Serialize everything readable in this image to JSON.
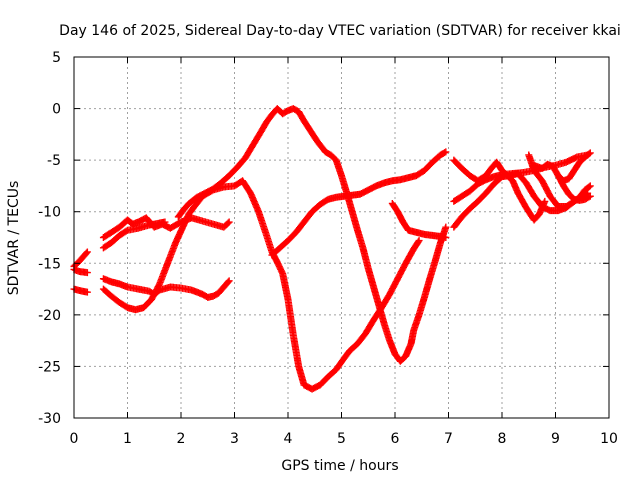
{
  "chart_data": {
    "type": "scatter",
    "title": "Day 146 of 2025, Sidereal Day-to-day VTEC variation (SDTVAR) for receiver kkai",
    "xlabel": "GPS time / hours",
    "ylabel": "SDTVAR / TECUs",
    "xlim": [
      0,
      10
    ],
    "ylim": [
      -30,
      5
    ],
    "xticks": [
      0,
      1,
      2,
      3,
      4,
      5,
      6,
      7,
      8,
      9,
      10
    ],
    "yticks": [
      -30,
      -25,
      -20,
      -15,
      -10,
      -5,
      0,
      5
    ],
    "grid": true,
    "marker": "+",
    "color": "#ff0000",
    "series": [
      {
        "x": [
          0.0,
          0.1,
          0.2,
          0.25
        ],
        "y": [
          -15.3,
          -14.8,
          -14.2,
          -13.9
        ]
      },
      {
        "x": [
          0.0,
          0.1,
          0.25
        ],
        "y": [
          -15.6,
          -15.8,
          -15.9
        ]
      },
      {
        "x": [
          0.0,
          0.15,
          0.25
        ],
        "y": [
          -17.5,
          -17.7,
          -17.8
        ]
      },
      {
        "x": [
          0.55,
          0.7,
          0.85,
          1.0,
          1.1,
          1.2,
          1.35,
          1.5,
          1.65,
          1.8,
          2.0,
          2.2,
          2.4,
          2.6,
          2.8,
          2.9
        ],
        "y": [
          -12.5,
          -12.0,
          -11.5,
          -10.8,
          -11.2,
          -11.0,
          -10.6,
          -11.5,
          -11.2,
          -11.6,
          -11.0,
          -10.6,
          -10.9,
          -11.2,
          -11.5,
          -11.0
        ]
      },
      {
        "x": [
          0.55,
          0.7,
          0.85,
          1.0,
          1.2,
          1.4,
          1.5,
          1.6,
          1.7
        ],
        "y": [
          -13.5,
          -13.0,
          -12.3,
          -11.8,
          -11.6,
          -11.3,
          -11.2,
          -11.1,
          -11.0
        ]
      },
      {
        "x": [
          0.55,
          0.7,
          0.85,
          1.0,
          1.2,
          1.4,
          1.5,
          1.6,
          1.8,
          2.0,
          2.2,
          2.4,
          2.5,
          2.6,
          2.7,
          2.8,
          2.9
        ],
        "y": [
          -16.5,
          -16.8,
          -17.0,
          -17.3,
          -17.5,
          -17.7,
          -18.0,
          -17.6,
          -17.3,
          -17.4,
          -17.6,
          -18.0,
          -18.3,
          -18.2,
          -17.9,
          -17.3,
          -16.7
        ]
      },
      {
        "x": [
          0.55,
          0.7,
          0.85,
          1.0,
          1.15,
          1.3,
          1.45,
          1.6,
          1.75,
          1.9,
          2.05,
          2.15,
          2.25,
          2.4,
          2.6,
          2.8,
          3.0,
          3.15,
          3.3,
          3.45,
          3.6,
          3.7,
          3.8,
          3.9,
          4.0,
          4.1,
          4.2,
          4.3,
          4.45,
          4.6,
          4.75,
          4.9,
          5.05,
          5.15,
          5.3,
          5.45,
          5.6,
          5.75,
          5.9,
          6.05,
          6.2,
          6.35,
          6.45
        ],
        "y": [
          -17.5,
          -18.2,
          -18.8,
          -19.3,
          -19.5,
          -19.3,
          -18.5,
          -17.0,
          -15.0,
          -13.0,
          -11.3,
          -10.2,
          -9.5,
          -8.5,
          -7.9,
          -7.6,
          -7.5,
          -7.0,
          -8.2,
          -10.0,
          -12.3,
          -13.9,
          -14.9,
          -16.0,
          -18.5,
          -22.0,
          -25.0,
          -26.8,
          -27.2,
          -26.8,
          -26.0,
          -25.3,
          -24.2,
          -23.5,
          -22.8,
          -21.8,
          -20.5,
          -19.3,
          -18.0,
          -16.5,
          -15.0,
          -13.6,
          -12.8
        ]
      },
      {
        "x": [
          1.95,
          2.05,
          2.15,
          2.3,
          2.45,
          2.6,
          2.75,
          2.9,
          3.05,
          3.2,
          3.35,
          3.5,
          3.6,
          3.7,
          3.8,
          3.9,
          4.0,
          4.1,
          4.2,
          4.3,
          4.4,
          4.55,
          4.7,
          4.8,
          4.9,
          5.0,
          5.1,
          5.2,
          5.3,
          5.4,
          5.5,
          5.6,
          5.7,
          5.8,
          5.9,
          6.0,
          6.1,
          6.2,
          6.3,
          6.35,
          6.45,
          6.55,
          6.65,
          6.75,
          6.85,
          6.95
        ],
        "y": [
          -10.5,
          -9.8,
          -9.2,
          -8.6,
          -8.2,
          -7.8,
          -7.2,
          -6.5,
          -5.7,
          -4.8,
          -3.5,
          -2.2,
          -1.3,
          -0.6,
          0.0,
          -0.5,
          -0.2,
          0.0,
          -0.3,
          -1.2,
          -2.0,
          -3.2,
          -4.2,
          -4.5,
          -5.0,
          -6.5,
          -8.2,
          -10.0,
          -11.8,
          -13.5,
          -15.5,
          -17.3,
          -19.1,
          -20.9,
          -22.5,
          -23.8,
          -24.5,
          -24.0,
          -22.8,
          -21.5,
          -20.0,
          -18.3,
          -16.5,
          -14.8,
          -13.0,
          -11.5
        ]
      },
      {
        "x": [
          3.7,
          3.85,
          4.0,
          4.15,
          4.3,
          4.45,
          4.6,
          4.75,
          4.9,
          5.05,
          5.2,
          5.35,
          5.5,
          5.65,
          5.8,
          5.95,
          6.1,
          6.25,
          6.4,
          6.55,
          6.7,
          6.85,
          6.95
        ],
        "y": [
          -14.2,
          -13.5,
          -12.8,
          -12.0,
          -11.0,
          -10.0,
          -9.3,
          -8.8,
          -8.6,
          -8.5,
          -8.4,
          -8.3,
          -7.9,
          -7.5,
          -7.2,
          -7.0,
          -6.9,
          -6.7,
          -6.5,
          -6.0,
          -5.2,
          -4.5,
          -4.2
        ]
      },
      {
        "x": [
          5.95,
          6.05,
          6.15,
          6.25,
          6.4,
          6.55,
          6.7,
          6.85,
          6.95
        ],
        "y": [
          -9.2,
          -10.0,
          -11.0,
          -11.8,
          -12.0,
          -12.2,
          -12.3,
          -12.4,
          -12.5
        ]
      },
      {
        "x": [
          7.1,
          7.25,
          7.4,
          7.55,
          7.7,
          7.85,
          8.0,
          8.2,
          8.4,
          8.6,
          8.8,
          9.0,
          9.2,
          9.4,
          9.6
        ],
        "y": [
          -9.0,
          -8.5,
          -8.0,
          -7.3,
          -6.9,
          -6.6,
          -6.4,
          -6.3,
          -6.2,
          -6.0,
          -5.7,
          -5.5,
          -5.2,
          -4.7,
          -4.5
        ]
      },
      {
        "x": [
          7.1,
          7.25,
          7.4,
          7.55,
          7.7,
          7.85,
          8.0,
          8.15,
          8.3,
          8.45,
          8.6,
          8.75,
          8.9,
          9.05,
          9.2,
          9.35,
          9.5,
          9.6
        ],
        "y": [
          -11.5,
          -10.5,
          -9.7,
          -9.0,
          -8.2,
          -7.3,
          -6.6,
          -6.5,
          -6.3,
          -7.2,
          -8.5,
          -9.5,
          -9.9,
          -9.9,
          -9.6,
          -9.0,
          -8.5,
          -8.2
        ]
      },
      {
        "x": [
          7.1,
          7.25,
          7.4,
          7.55,
          7.7,
          7.8,
          7.9,
          8.0,
          8.1,
          8.2,
          8.3,
          8.45,
          8.6,
          8.7,
          8.8
        ],
        "y": [
          -5.0,
          -5.8,
          -6.5,
          -7.0,
          -6.5,
          -5.8,
          -5.2,
          -6.0,
          -6.5,
          -7.0,
          -8.2,
          -9.6,
          -10.8,
          -10.2,
          -9.0
        ]
      },
      {
        "x": [
          8.5,
          8.6,
          8.75,
          8.9,
          9.05,
          9.2,
          9.35,
          9.45,
          9.55,
          9.65
        ],
        "y": [
          -4.5,
          -6.0,
          -7.0,
          -8.5,
          -9.5,
          -9.5,
          -9.0,
          -8.6,
          -7.9,
          -7.5
        ]
      },
      {
        "x": [
          8.6,
          8.75,
          8.85,
          8.95,
          9.05,
          9.15,
          9.25,
          9.35,
          9.45,
          9.55,
          9.65
        ],
        "y": [
          -5.5,
          -5.8,
          -5.4,
          -5.6,
          -6.5,
          -7.5,
          -8.3,
          -8.8,
          -8.9,
          -8.8,
          -8.5
        ]
      },
      {
        "x": [
          9.05,
          9.15,
          9.25,
          9.35,
          9.45,
          9.55,
          9.65
        ],
        "y": [
          -6.5,
          -7.0,
          -6.8,
          -6.0,
          -5.2,
          -4.7,
          -4.3
        ]
      }
    ]
  }
}
